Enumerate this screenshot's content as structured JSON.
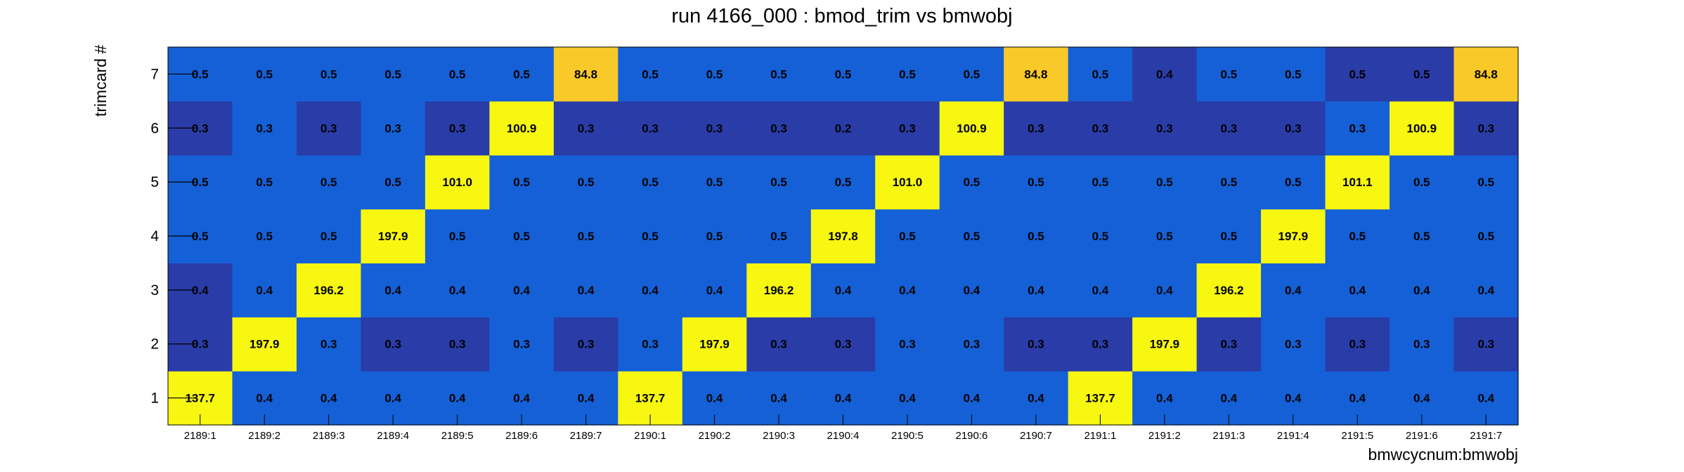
{
  "chart_data": {
    "type": "heatmap",
    "title": "run 4166_000 : bmod_trim vs bmwobj",
    "xlabel": "bmwcycnum:bmwobj",
    "ylabel": "trimcard #",
    "x_categories": [
      "2189:1",
      "2189:2",
      "2189:3",
      "2189:4",
      "2189:5",
      "2189:6",
      "2189:7",
      "2190:1",
      "2190:2",
      "2190:3",
      "2190:4",
      "2190:5",
      "2190:6",
      "2190:7",
      "2191:1",
      "2191:2",
      "2191:3",
      "2191:4",
      "2191:5",
      "2191:6",
      "2191:7"
    ],
    "y_categories": [
      "1",
      "2",
      "3",
      "4",
      "5",
      "6",
      "7"
    ],
    "labels": [
      [
        "137.7",
        "0.4",
        "0.4",
        "0.4",
        "0.4",
        "0.4",
        "0.4",
        "137.7",
        "0.4",
        "0.4",
        "0.4",
        "0.4",
        "0.4",
        "0.4",
        "137.7",
        "0.4",
        "0.4",
        "0.4",
        "0.4",
        "0.4",
        "0.4"
      ],
      [
        "0.3",
        "197.9",
        "0.3",
        "0.3",
        "0.3",
        "0.3",
        "0.3",
        "0.3",
        "197.9",
        "0.3",
        "0.3",
        "0.3",
        "0.3",
        "0.3",
        "0.3",
        "197.9",
        "0.3",
        "0.3",
        "0.3",
        "0.3",
        "0.3"
      ],
      [
        "0.4",
        "0.4",
        "196.2",
        "0.4",
        "0.4",
        "0.4",
        "0.4",
        "0.4",
        "0.4",
        "196.2",
        "0.4",
        "0.4",
        "0.4",
        "0.4",
        "0.4",
        "0.4",
        "196.2",
        "0.4",
        "0.4",
        "0.4",
        "0.4"
      ],
      [
        "0.5",
        "0.5",
        "0.5",
        "197.9",
        "0.5",
        "0.5",
        "0.5",
        "0.5",
        "0.5",
        "0.5",
        "197.8",
        "0.5",
        "0.5",
        "0.5",
        "0.5",
        "0.5",
        "0.5",
        "197.9",
        "0.5",
        "0.5",
        "0.5"
      ],
      [
        "0.5",
        "0.5",
        "0.5",
        "0.5",
        "101.0",
        "0.5",
        "0.5",
        "0.5",
        "0.5",
        "0.5",
        "0.5",
        "101.0",
        "0.5",
        "0.5",
        "0.5",
        "0.5",
        "0.5",
        "0.5",
        "101.1",
        "0.5",
        "0.5"
      ],
      [
        "0.3",
        "0.3",
        "0.3",
        "0.3",
        "0.3",
        "100.9",
        "0.3",
        "0.3",
        "0.3",
        "0.3",
        "0.2",
        "0.3",
        "100.9",
        "0.3",
        "0.3",
        "0.3",
        "0.3",
        "0.3",
        "0.3",
        "100.9",
        "0.3"
      ],
      [
        "0.5",
        "0.5",
        "0.5",
        "0.5",
        "0.5",
        "0.5",
        "84.8",
        "0.5",
        "0.5",
        "0.5",
        "0.5",
        "0.5",
        "0.5",
        "84.8",
        "0.5",
        "0.4",
        "0.5",
        "0.5",
        "0.5",
        "0.5",
        "84.8"
      ]
    ],
    "dark_low_cells": [
      [
        1,
        0
      ],
      [
        1,
        3
      ],
      [
        1,
        4
      ],
      [
        1,
        6
      ],
      [
        1,
        9
      ],
      [
        1,
        10
      ],
      [
        1,
        13
      ],
      [
        1,
        14
      ],
      [
        1,
        16
      ],
      [
        1,
        18
      ],
      [
        1,
        20
      ],
      [
        2,
        0
      ],
      [
        5,
        0
      ],
      [
        5,
        2
      ],
      [
        5,
        4
      ],
      [
        5,
        6
      ],
      [
        5,
        7
      ],
      [
        5,
        8
      ],
      [
        5,
        9
      ],
      [
        5,
        10
      ],
      [
        5,
        11
      ],
      [
        5,
        13
      ],
      [
        5,
        14
      ],
      [
        5,
        15
      ],
      [
        5,
        16
      ],
      [
        5,
        17
      ],
      [
        5,
        20
      ],
      [
        6,
        15
      ],
      [
        6,
        18
      ],
      [
        6,
        19
      ]
    ],
    "colors": {
      "low_blue": "#1560d6",
      "low_dark_blue": "#2a3ca7",
      "high_yellow": "#f7f712",
      "mid_gold": "#f9c929"
    }
  }
}
